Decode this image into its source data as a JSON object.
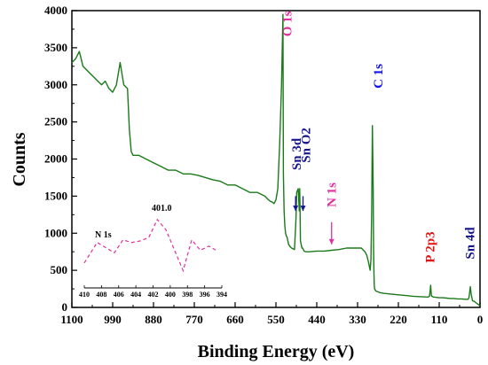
{
  "chart_data": {
    "type": "line",
    "xlabel": "Binding Energy (eV)",
    "ylabel": "Counts",
    "xlim": [
      1100,
      0
    ],
    "ylim": [
      0,
      4000
    ],
    "x_ticks": [
      "1100",
      "990",
      "880",
      "770",
      "660",
      "550",
      "440",
      "330",
      "220",
      "110",
      "0"
    ],
    "y_ticks": [
      "0",
      "500",
      "1000",
      "1500",
      "2000",
      "2500",
      "3000",
      "3500",
      "4000"
    ],
    "series_color": "#1a7a1a",
    "series": [
      {
        "x": [
          1100,
          1090,
          1080,
          1070,
          1060,
          1050,
          1040,
          1030,
          1020,
          1010,
          1000,
          990,
          980,
          970,
          960,
          950,
          945,
          940,
          935,
          920,
          900,
          880,
          860,
          840,
          820,
          800,
          780,
          760,
          740,
          720,
          700,
          680,
          660,
          640,
          620,
          600,
          580,
          570,
          565,
          560,
          555,
          550,
          545,
          540,
          535,
          531,
          530,
          528,
          526,
          524,
          522,
          520,
          518,
          516,
          512,
          508,
          504,
          500,
          496,
          494,
          490,
          487,
          486,
          485,
          484,
          482,
          480,
          478,
          476,
          474,
          470,
          460,
          440,
          420,
          400,
          380,
          360,
          340,
          320,
          310,
          305,
          300,
          296,
          294,
          292,
          290,
          288,
          287,
          286,
          285,
          284,
          282,
          280,
          275,
          270,
          260,
          240,
          220,
          200,
          180,
          160,
          140,
          136,
          134,
          133,
          132,
          131,
          130,
          125,
          110,
          100,
          90,
          80,
          70,
          60,
          50,
          40,
          32,
          30,
          28,
          26,
          24,
          20,
          15,
          10,
          5,
          0
        ],
        "y": [
          3300,
          3350,
          3450,
          3250,
          3200,
          3150,
          3100,
          3050,
          3000,
          3050,
          2950,
          2900,
          3000,
          3300,
          3000,
          2950,
          2400,
          2100,
          2050,
          2050,
          2000,
          1950,
          1900,
          1850,
          1850,
          1800,
          1800,
          1780,
          1750,
          1720,
          1700,
          1650,
          1650,
          1600,
          1550,
          1550,
          1500,
          1450,
          1430,
          1420,
          1400,
          1450,
          1600,
          2200,
          3000,
          3950,
          1800,
          1300,
          1100,
          1000,
          960,
          950,
          900,
          850,
          820,
          800,
          790,
          780,
          1200,
          1550,
          1600,
          1300,
          1600,
          1300,
          900,
          850,
          800,
          800,
          780,
          760,
          750,
          750,
          760,
          760,
          770,
          780,
          800,
          800,
          800,
          750,
          700,
          600,
          500,
          650,
          1300,
          2450,
          1600,
          800,
          500,
          300,
          250,
          230,
          220,
          210,
          200,
          190,
          180,
          170,
          160,
          150,
          145,
          140,
          150,
          250,
          300,
          220,
          160,
          150,
          140,
          130,
          130,
          125,
          120,
          120,
          115,
          115,
          110,
          110,
          130,
          200,
          280,
          180,
          90,
          80,
          60,
          40,
          20
        ]
      }
    ],
    "annotations": [
      {
        "text": "O 1s",
        "color": "#e0309f",
        "x": 520,
        "y": 3650
      },
      {
        "text": "Sn 3d",
        "color": "#14148c",
        "x": 495,
        "y": 1850
      },
      {
        "text": "Sn O2",
        "color": "#14148c",
        "x": 470,
        "y": 1950
      },
      {
        "text": "N 1s",
        "color": "#e0309f",
        "x": 400,
        "y": 1350
      },
      {
        "text": "C 1s",
        "color": "#1414e6",
        "x": 275,
        "y": 2950
      },
      {
        "text": "P 2p3",
        "color": "#e01414",
        "x": 135,
        "y": 600
      },
      {
        "text": "Sn 4d",
        "color": "#14148c",
        "x": 28,
        "y": 650
      }
    ],
    "arrows": [
      {
        "color": "#14148c",
        "x": 497,
        "y_from": 1500,
        "y_to": 1300
      },
      {
        "color": "#14148c",
        "x": 477,
        "y_from": 1500,
        "y_to": 1300
      },
      {
        "color": "#e0309f",
        "x": 400,
        "y_from": 1150,
        "y_to": 850
      }
    ],
    "inset": {
      "title": "N 1s",
      "title_color": "#e0309f",
      "line_color": "#e0309f",
      "peak_label": "401.0",
      "xlim": [
        410,
        394
      ],
      "x_ticks": [
        "410",
        "408",
        "406",
        "404",
        "402",
        "400",
        "398",
        "396",
        "394"
      ],
      "x": [
        410,
        408.5,
        407.5,
        406.5,
        405.5,
        404.5,
        403.5,
        402.5,
        401.5,
        400.5,
        399.5,
        398.5,
        397.5,
        396.5,
        395.5,
        394.5
      ],
      "y": [
        0.35,
        0.75,
        0.65,
        0.55,
        0.8,
        0.75,
        0.78,
        0.85,
        1.2,
        1.0,
        0.6,
        0.2,
        0.8,
        0.6,
        0.68,
        0.58
      ]
    }
  }
}
